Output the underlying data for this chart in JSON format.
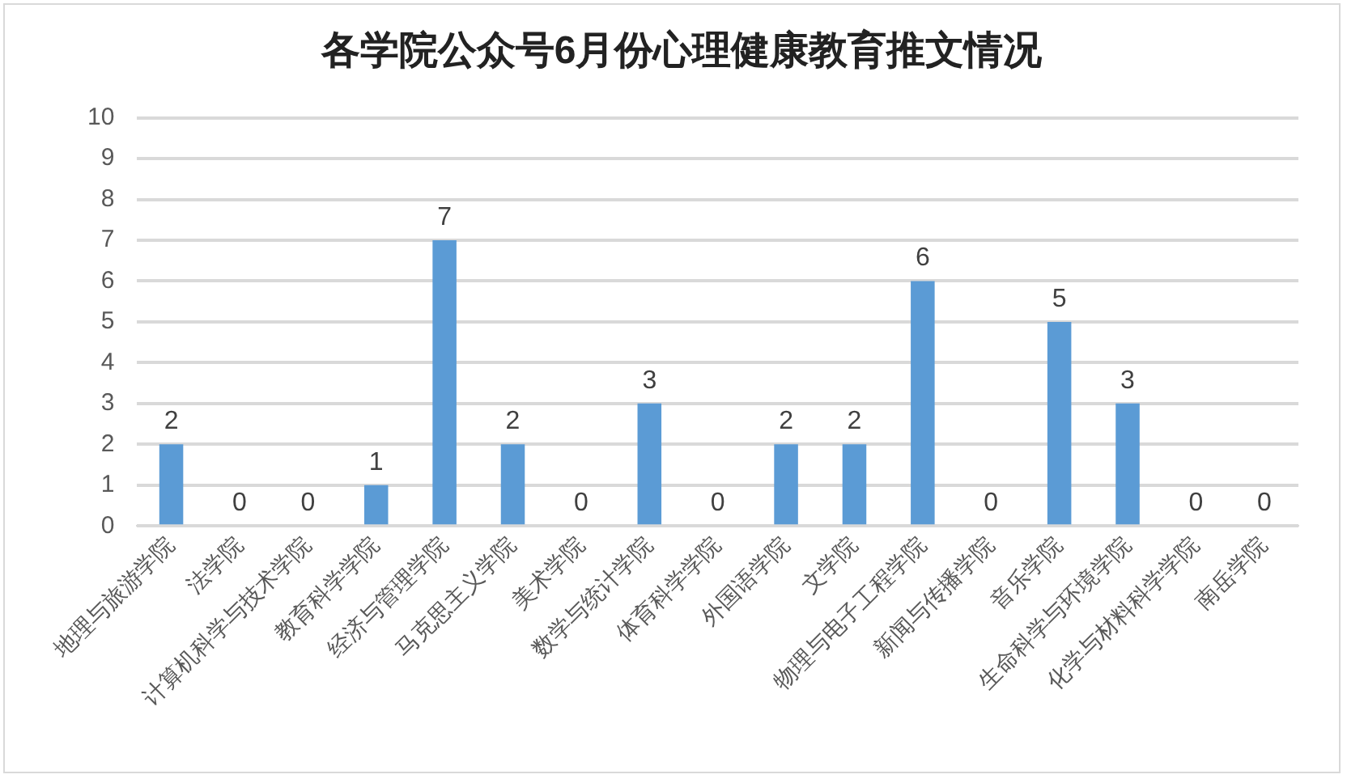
{
  "chart_data": {
    "type": "bar",
    "title": "各学院公众号6月份心理健康教育推文情况",
    "categories": [
      "地理与旅游学院",
      "法学院",
      "计算机科学与技术学院",
      "教育科学学院",
      "经济与管理学院",
      "马克思主义学院",
      "美术学院",
      "数学与统计学院",
      "体育科学学院",
      "外国语学院",
      "文学院",
      "物理与电子工程学院",
      "新闻与传播学院",
      "音乐学院",
      "生命科学与环境学院",
      "化学与材料科学学院",
      "南岳学院"
    ],
    "values": [
      2,
      0,
      0,
      1,
      7,
      2,
      0,
      3,
      0,
      2,
      2,
      6,
      0,
      5,
      3,
      0,
      0
    ],
    "color": "#5b9bd5",
    "ylim": [
      0,
      10
    ],
    "yticks": [
      0,
      1,
      2,
      3,
      4,
      5,
      6,
      7,
      8,
      9,
      10
    ],
    "grid": "y",
    "data_labels": true,
    "legend": false
  }
}
